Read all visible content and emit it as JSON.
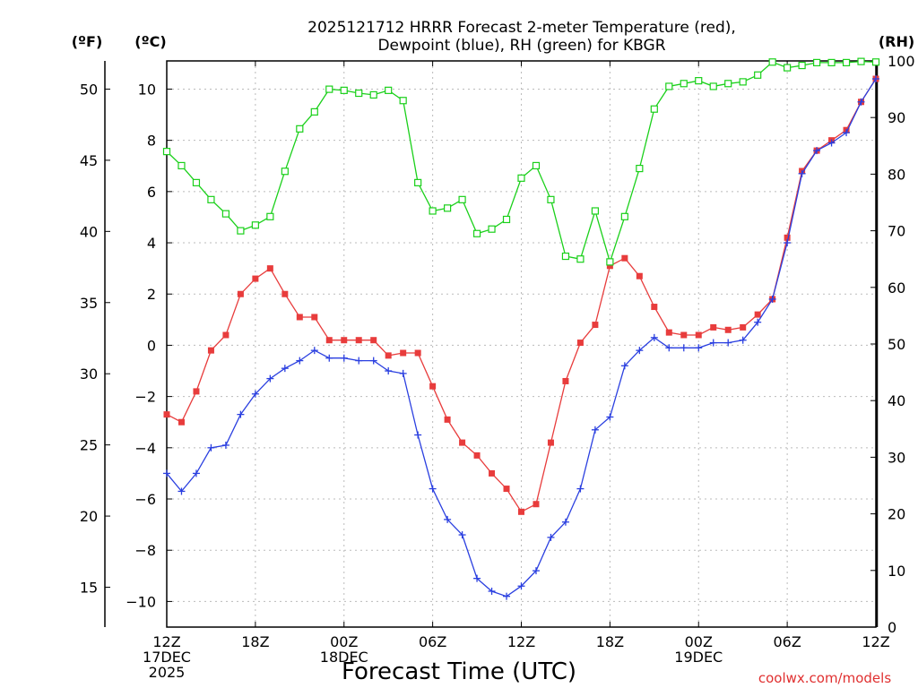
{
  "title_line1": "2025121712 HRRR Forecast 2-meter Temperature (red),",
  "title_line2": "Dewpoint (blue), RH (green) for KBGR",
  "units": {
    "fahrenheit": "(ºF)",
    "celsius": "(ºC)",
    "rh": "(RH)"
  },
  "x_axis_title": "Forecast Time (UTC)",
  "credit": "coolwx.com/models",
  "colors": {
    "temperature": "#e83c3c",
    "dewpoint": "#2a3fe0",
    "rh": "#1ad01a",
    "grid": "#bbbbbb"
  },
  "chart_data": {
    "type": "line",
    "title": "2025121712 HRRR Forecast 2-meter Temperature (red), Dewpoint (blue), RH (green) for KBGR",
    "xlabel": "Forecast Time (UTC)",
    "x_hours": [
      0,
      1,
      2,
      3,
      4,
      5,
      6,
      7,
      8,
      9,
      10,
      11,
      12,
      13,
      14,
      15,
      16,
      17,
      18,
      19,
      20,
      21,
      22,
      23,
      24,
      25,
      26,
      27,
      28,
      29,
      30,
      31,
      32,
      33,
      34,
      35,
      36,
      37,
      38,
      39,
      40,
      41,
      42,
      43,
      44,
      45,
      46,
      47,
      48
    ],
    "x_ticks": [
      {
        "hour": 0,
        "lines": [
          "12Z",
          "17DEC",
          "2025"
        ]
      },
      {
        "hour": 6,
        "lines": [
          "18Z"
        ]
      },
      {
        "hour": 12,
        "lines": [
          "00Z",
          "18DEC"
        ]
      },
      {
        "hour": 18,
        "lines": [
          "06Z"
        ]
      },
      {
        "hour": 24,
        "lines": [
          "12Z"
        ]
      },
      {
        "hour": 30,
        "lines": [
          "18Z"
        ]
      },
      {
        "hour": 36,
        "lines": [
          "00Z",
          "19DEC"
        ]
      },
      {
        "hour": 42,
        "lines": [
          "06Z"
        ]
      },
      {
        "hour": 48,
        "lines": [
          "12Z"
        ]
      }
    ],
    "y_left_celsius": {
      "ylim": [
        -11,
        11.1
      ],
      "ticks": [
        -10,
        -8,
        -6,
        -4,
        -2,
        0,
        2,
        4,
        6,
        8,
        10
      ]
    },
    "y_far_left_fahrenheit": {
      "ticks": [
        15,
        20,
        25,
        30,
        35,
        40,
        45,
        50
      ]
    },
    "y_right_rh": {
      "ylim": [
        0,
        100
      ],
      "ticks": [
        0,
        10,
        20,
        30,
        40,
        50,
        60,
        70,
        80,
        90,
        100
      ]
    },
    "grid": true,
    "series": [
      {
        "key": "temperature",
        "axis": "celsius",
        "marker": "filled-square",
        "values": [
          -2.7,
          -3.0,
          -1.8,
          -0.2,
          0.4,
          2.0,
          2.6,
          3.0,
          2.0,
          1.1,
          1.1,
          0.2,
          0.2,
          0.2,
          0.2,
          -0.4,
          -0.3,
          -0.3,
          -1.6,
          -2.9,
          -3.8,
          -4.3,
          -5.0,
          -5.6,
          -6.5,
          -6.2,
          -3.8,
          -1.4,
          0.1,
          0.8,
          3.1,
          3.4,
          2.7,
          1.5,
          0.5,
          0.4,
          0.4,
          0.7,
          0.6,
          0.7,
          1.2,
          1.8,
          4.2,
          6.8,
          7.6,
          8.0,
          8.4,
          9.5,
          10.4
        ]
      },
      {
        "key": "dewpoint",
        "axis": "celsius",
        "marker": "plus",
        "values": [
          -5.0,
          -5.7,
          -5.0,
          -4.0,
          -3.9,
          -2.7,
          -1.9,
          -1.3,
          -0.9,
          -0.6,
          -0.2,
          -0.5,
          -0.5,
          -0.6,
          -0.6,
          -1.0,
          -1.1,
          -3.5,
          -5.6,
          -6.8,
          -7.4,
          -9.1,
          -9.6,
          -9.8,
          -9.4,
          -8.8,
          -7.5,
          -6.9,
          -5.6,
          -3.3,
          -2.8,
          -0.8,
          -0.2,
          0.3,
          -0.1,
          -0.1,
          -0.1,
          0.1,
          0.1,
          0.2,
          0.9,
          1.8,
          4.0,
          6.7,
          7.6,
          7.9,
          8.3,
          9.5,
          10.4
        ]
      },
      {
        "key": "rh",
        "axis": "rh",
        "marker": "open-square",
        "values": [
          84,
          81.5,
          78.5,
          75.5,
          73,
          70,
          71,
          72.5,
          80.5,
          88,
          91,
          95,
          94.8,
          94.3,
          94,
          94.8,
          93,
          78.5,
          73.5,
          74,
          75.5,
          69.5,
          70.3,
          72,
          79.3,
          81.5,
          75.5,
          65.5,
          65,
          73.5,
          64.5,
          72.5,
          81,
          91.5,
          95.5,
          96,
          96.5,
          95.5,
          96,
          96.3,
          97.5,
          99.8,
          98.8,
          99.2,
          99.7,
          99.7,
          99.7,
          99.9,
          99.8
        ]
      }
    ]
  }
}
